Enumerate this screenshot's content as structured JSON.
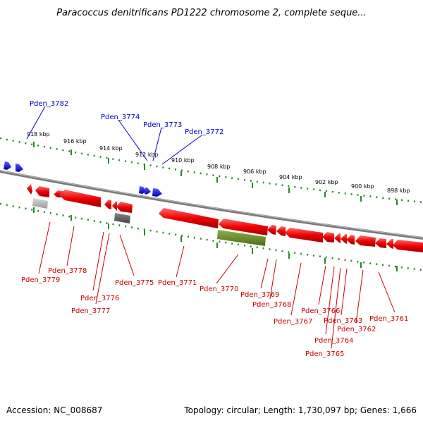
{
  "title": "Paracoccus denitrificans PD1222 chromosome 2, complete seque...",
  "footer": {
    "accession": "Accession: NC_008687",
    "topology": "Topology: circular; Length: 1,730,097 bp; Genes: 1,666"
  },
  "colors": {
    "forward_gene": "#0000ee",
    "reverse_gene": "#ee0000",
    "backbone": "#888888",
    "tick": "#228b22",
    "rna_grey": "#aaaaaa",
    "rna_dark": "#666666",
    "operon_green": "#6b8e23"
  },
  "scale_labels": [
    "918 kbp",
    "916 kbp",
    "914 kbp",
    "912 kbp",
    "910 kbp",
    "908 kbp",
    "906 kbp",
    "904 kbp",
    "902 kbp",
    "900 kbp",
    "898 kbp"
  ],
  "forward_labels": [
    "Pden_3782",
    "Pden_3774",
    "Pden_3773",
    "Pden_3772"
  ],
  "reverse_labels": [
    "Pden_3779",
    "Pden_3778",
    "Pden_3776",
    "Pden_3777",
    "Pden_3775",
    "Pden_3771",
    "Pden_3770",
    "Pden_3769",
    "Pden_3768",
    "Pden_3767",
    "Pden_3766",
    "Pden_3763",
    "Pden_3762",
    "Pden_3764",
    "Pden_3765",
    "Pden_3761"
  ]
}
